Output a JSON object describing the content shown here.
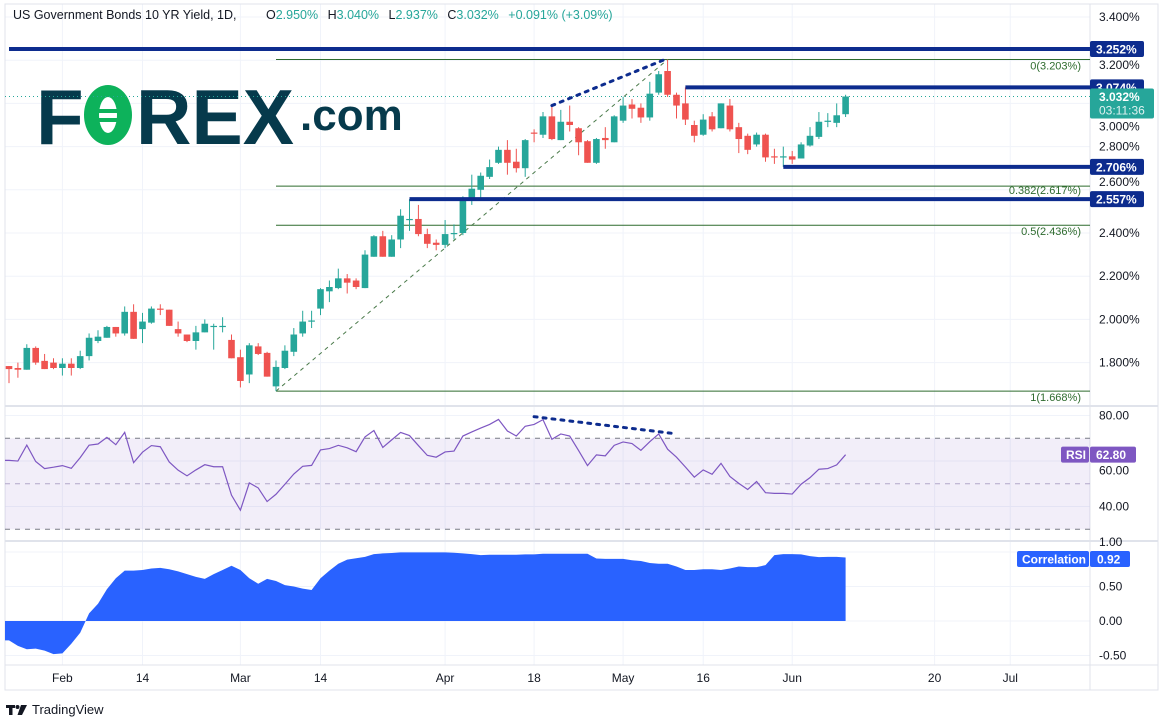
{
  "header": {
    "symbol": "US Government Bonds 10 YR Yield, 1D,",
    "open_key": "O",
    "open": "2.950%",
    "high_key": "H",
    "high": "3.040%",
    "low_key": "L",
    "low": "2.937%",
    "close_key": "C",
    "close": "3.032%",
    "change": "+0.091% (+3.09%)"
  },
  "logo": {
    "text": "FOREX.com"
  },
  "footer": {
    "brand": "TradingView"
  },
  "colors": {
    "up": "#26a69a",
    "down": "#ef5350",
    "level": "#0d2c8e",
    "fib": "#2e6b2e",
    "rsi": "#7e57c2",
    "correlation": "#2962ff"
  },
  "chart_data": [
    {
      "type": "candlestick",
      "title": "US Government Bonds 10 YR Yield, 1D",
      "ylim": [
        1.6,
        3.45
      ],
      "y_ticks": [
        "3.400%",
        "3.200%",
        "3.000%",
        "2.800%",
        "2.600%",
        "2.400%",
        "2.200%",
        "2.000%",
        "1.800%"
      ],
      "y_tick_values": [
        3.4,
        3.2,
        3.0,
        2.8,
        2.6,
        2.4,
        2.2,
        2.0,
        1.8
      ],
      "x_ticks": [
        {
          "label": "Feb",
          "bar": 6
        },
        {
          "label": "14",
          "bar": 15
        },
        {
          "label": "Mar",
          "bar": 26
        },
        {
          "label": "14",
          "bar": 35
        },
        {
          "label": "Apr",
          "bar": 49
        },
        {
          "label": "18",
          "bar": 59
        },
        {
          "label": "May",
          "bar": 69
        },
        {
          "label": "16",
          "bar": 78
        },
        {
          "label": "Jun",
          "bar": 88
        },
        {
          "label": "20",
          "bar": 104
        },
        {
          "label": "Jul",
          "bar": 112.5
        }
      ],
      "ohlc": [
        [
          1.784,
          1.784,
          1.705,
          1.77
        ],
        [
          1.775,
          1.8,
          1.73,
          1.767
        ],
        [
          1.767,
          1.885,
          1.767,
          1.868
        ],
        [
          1.868,
          1.875,
          1.79,
          1.8
        ],
        [
          1.808,
          1.84,
          1.77,
          1.77
        ],
        [
          1.8,
          1.82,
          1.77,
          1.775
        ],
        [
          1.775,
          1.82,
          1.74,
          1.795
        ],
        [
          1.795,
          1.82,
          1.74,
          1.775
        ],
        [
          1.775,
          1.855,
          1.77,
          1.83
        ],
        [
          1.83,
          1.935,
          1.81,
          1.915
        ],
        [
          1.9,
          1.95,
          1.89,
          1.92
        ],
        [
          1.915,
          1.97,
          1.915,
          1.965
        ],
        [
          1.965,
          1.965,
          1.92,
          1.935
        ],
        [
          1.935,
          2.06,
          1.925,
          2.035
        ],
        [
          2.035,
          2.07,
          1.91,
          1.91
        ],
        [
          1.955,
          2.03,
          1.89,
          1.99
        ],
        [
          1.985,
          2.06,
          1.98,
          2.05
        ],
        [
          2.05,
          2.07,
          2.02,
          2.045
        ],
        [
          2.045,
          2.045,
          1.97,
          1.97
        ],
        [
          1.955,
          1.99,
          1.92,
          1.935
        ],
        [
          1.93,
          1.93,
          1.895,
          1.9
        ],
        [
          1.9,
          1.97,
          1.86,
          1.94
        ],
        [
          1.94,
          2.0,
          1.94,
          1.98
        ],
        [
          1.965,
          1.98,
          1.86,
          1.97
        ],
        [
          1.965,
          2.01,
          1.94,
          1.97
        ],
        [
          1.905,
          1.93,
          1.82,
          1.82
        ],
        [
          1.825,
          1.86,
          1.685,
          1.715
        ],
        [
          1.745,
          1.89,
          1.705,
          1.88
        ],
        [
          1.875,
          1.89,
          1.835,
          1.84
        ],
        [
          1.845,
          1.85,
          1.735,
          1.735
        ],
        [
          1.69,
          1.81,
          1.668,
          1.78
        ],
        [
          1.775,
          1.88,
          1.77,
          1.855
        ],
        [
          1.85,
          1.96,
          1.83,
          1.93
        ],
        [
          1.935,
          2.04,
          1.92,
          1.99
        ],
        [
          1.99,
          2.04,
          1.96,
          1.995
        ],
        [
          2.05,
          2.145,
          2.02,
          2.14
        ],
        [
          2.13,
          2.18,
          2.08,
          2.15
        ],
        [
          2.145,
          2.235,
          2.14,
          2.19
        ],
        [
          2.19,
          2.21,
          2.12,
          2.17
        ],
        [
          2.18,
          2.19,
          2.14,
          2.15
        ],
        [
          2.145,
          2.32,
          2.145,
          2.3
        ],
        [
          2.29,
          2.39,
          2.29,
          2.385
        ],
        [
          2.385,
          2.41,
          2.29,
          2.29
        ],
        [
          2.29,
          2.39,
          2.29,
          2.37
        ],
        [
          2.37,
          2.51,
          2.33,
          2.48
        ],
        [
          2.46,
          2.557,
          2.41,
          2.465
        ],
        [
          2.465,
          2.53,
          2.385,
          2.395
        ],
        [
          2.395,
          2.42,
          2.33,
          2.35
        ],
        [
          2.355,
          2.37,
          2.32,
          2.345
        ],
        [
          2.345,
          2.46,
          2.33,
          2.395
        ],
        [
          2.395,
          2.44,
          2.37,
          2.4
        ],
        [
          2.4,
          2.57,
          2.39,
          2.555
        ],
        [
          2.55,
          2.67,
          2.53,
          2.605
        ],
        [
          2.6,
          2.68,
          2.55,
          2.665
        ],
        [
          2.66,
          2.74,
          2.65,
          2.705
        ],
        [
          2.725,
          2.8,
          2.72,
          2.785
        ],
        [
          2.785,
          2.83,
          2.67,
          2.725
        ],
        [
          2.73,
          2.79,
          2.68,
          2.7
        ],
        [
          2.7,
          2.835,
          2.66,
          2.83
        ],
        [
          2.865,
          2.88,
          2.82,
          2.86
        ],
        [
          2.855,
          2.96,
          2.84,
          2.94
        ],
        [
          2.94,
          2.99,
          2.83,
          2.835
        ],
        [
          2.83,
          2.97,
          2.83,
          2.915
        ],
        [
          2.915,
          2.99,
          2.87,
          2.9
        ],
        [
          2.885,
          2.89,
          2.76,
          2.82
        ],
        [
          2.825,
          2.83,
          2.725,
          2.725
        ],
        [
          2.725,
          2.84,
          2.72,
          2.835
        ],
        [
          2.84,
          2.89,
          2.79,
          2.83
        ],
        [
          2.82,
          2.945,
          2.82,
          2.94
        ],
        [
          2.92,
          3.03,
          2.91,
          2.99
        ],
        [
          2.995,
          3.02,
          2.93,
          2.975
        ],
        [
          2.98,
          3.0,
          2.91,
          2.935
        ],
        [
          2.935,
          3.1,
          2.92,
          3.045
        ],
        [
          3.05,
          3.15,
          3.04,
          3.135
        ],
        [
          3.15,
          3.203,
          3.03,
          3.04
        ],
        [
          3.04,
          3.05,
          2.93,
          2.99
        ],
        [
          3.0,
          3.074,
          2.9,
          2.925
        ],
        [
          2.9,
          2.92,
          2.82,
          2.85
        ],
        [
          2.855,
          2.95,
          2.85,
          2.925
        ],
        [
          2.94,
          2.96,
          2.87,
          2.88
        ],
        [
          2.885,
          3.0,
          2.885,
          3.0
        ],
        [
          2.99,
          3.02,
          2.87,
          2.88
        ],
        [
          2.89,
          2.91,
          2.77,
          2.835
        ],
        [
          2.85,
          2.86,
          2.765,
          2.785
        ],
        [
          2.81,
          2.865,
          2.8,
          2.855
        ],
        [
          2.855,
          2.86,
          2.73,
          2.75
        ],
        [
          2.755,
          2.79,
          2.72,
          2.75
        ],
        [
          2.75,
          2.8,
          2.706,
          2.755
        ],
        [
          2.755,
          2.78,
          2.72,
          2.74
        ],
        [
          2.745,
          2.82,
          2.745,
          2.81
        ],
        [
          2.805,
          2.89,
          2.8,
          2.85
        ],
        [
          2.845,
          2.96,
          2.835,
          2.915
        ],
        [
          2.915,
          2.955,
          2.89,
          2.92
        ],
        [
          2.91,
          3.0,
          2.89,
          2.945
        ],
        [
          2.95,
          3.04,
          2.937,
          3.032
        ]
      ],
      "last_price": {
        "value": "3.032%",
        "countdown": "03:11:36",
        "price": 3.032
      },
      "levels": [
        {
          "label": "3.252%",
          "price": 3.252,
          "from_bar": 0
        },
        {
          "label": "3.074%",
          "price": 3.074,
          "from_bar": 76
        },
        {
          "label": "2.706%",
          "price": 2.706,
          "from_bar": 87
        },
        {
          "label": "2.557%",
          "price": 2.557,
          "from_bar": 45
        }
      ],
      "fibonacci": {
        "from_bar": 30,
        "levels": [
          {
            "label": "0(3.203%)",
            "price": 3.203
          },
          {
            "label": "0.382(2.617%)",
            "price": 2.617
          },
          {
            "label": "0.5(2.436%)",
            "price": 2.436
          },
          {
            "label": "1(1.668%)",
            "price": 1.668
          }
        ],
        "trend": [
          {
            "bar": 30,
            "price": 1.668
          },
          {
            "bar": 74,
            "price": 3.203
          }
        ]
      },
      "divergence_line": [
        {
          "bar": 61,
          "price": 2.99
        },
        {
          "bar": 73.5,
          "price": 3.2
        }
      ]
    },
    {
      "type": "line",
      "name": "RSI",
      "value_label": "62.80",
      "ylim": [
        25,
        85
      ],
      "y_ticks": [
        "80.00",
        "60.00",
        "40.00"
      ],
      "y_tick_values": [
        80,
        60,
        40
      ],
      "bands": {
        "upper": 70,
        "middle": 50,
        "lower": 30
      },
      "values": [
        60.3,
        60,
        67,
        59.8,
        56.7,
        57.3,
        58,
        56.8,
        61.5,
        67,
        67.5,
        70.4,
        67.2,
        72.6,
        59.3,
        63.9,
        66.8,
        66.3,
        59.6,
        56,
        53.5,
        56.1,
        58.4,
        57.5,
        57.5,
        45,
        38.4,
        50.4,
        48.2,
        42.2,
        45.4,
        49.8,
        54.3,
        57.7,
        58.1,
        64.9,
        65.5,
        66.9,
        65.8,
        64.1,
        70.6,
        73.4,
        66,
        69.3,
        72.6,
        71.2,
        66.8,
        62.5,
        61.7,
        64,
        64.4,
        71,
        72.8,
        74.5,
        76.1,
        78.3,
        73.2,
        71,
        75.3,
        76.1,
        78.2,
        69.6,
        71.9,
        71,
        64.6,
        58,
        62.7,
        62.3,
        66.9,
        68.4,
        67.7,
        64.7,
        68.5,
        71.9,
        65.2,
        61.7,
        57.4,
        52.9,
        56.1,
        54.2,
        59,
        53.2,
        50.2,
        47.5,
        51,
        46.1,
        45.8,
        45.8,
        45.5,
        49.8,
        52.7,
        56.4,
        56.7,
        58.3,
        62.8
      ],
      "divergence_line": [
        {
          "bar": 59,
          "value": 79.5
        },
        {
          "bar": 74.5,
          "value": 72.2
        }
      ]
    },
    {
      "type": "area",
      "name": "Correlation",
      "value_label": "0.92",
      "ylim": [
        -0.6,
        1.1
      ],
      "y_ticks": [
        "1.00",
        "0.50",
        "0.00",
        "-0.50"
      ],
      "y_tick_values": [
        1,
        0.5,
        0,
        -0.5
      ],
      "values": [
        -0.28,
        -0.36,
        -0.41,
        -0.4,
        -0.43,
        -0.48,
        -0.47,
        -0.33,
        -0.17,
        0.11,
        0.25,
        0.46,
        0.62,
        0.73,
        0.73,
        0.74,
        0.76,
        0.77,
        0.75,
        0.72,
        0.68,
        0.64,
        0.61,
        0.68,
        0.74,
        0.8,
        0.74,
        0.62,
        0.54,
        0.61,
        0.58,
        0.52,
        0.5,
        0.47,
        0.45,
        0.62,
        0.73,
        0.83,
        0.89,
        0.91,
        0.93,
        0.97,
        0.98,
        0.985,
        0.995,
        0.995,
        0.995,
        0.995,
        0.995,
        0.995,
        0.99,
        0.98,
        0.97,
        0.955,
        0.96,
        0.96,
        0.96,
        0.96,
        0.965,
        0.965,
        0.975,
        0.975,
        0.975,
        0.975,
        0.975,
        0.975,
        0.905,
        0.9,
        0.9,
        0.9,
        0.88,
        0.87,
        0.84,
        0.83,
        0.83,
        0.79,
        0.74,
        0.74,
        0.75,
        0.75,
        0.74,
        0.76,
        0.79,
        0.78,
        0.78,
        0.81,
        0.955,
        0.97,
        0.97,
        0.965,
        0.94,
        0.925,
        0.93,
        0.93,
        0.92
      ]
    }
  ]
}
